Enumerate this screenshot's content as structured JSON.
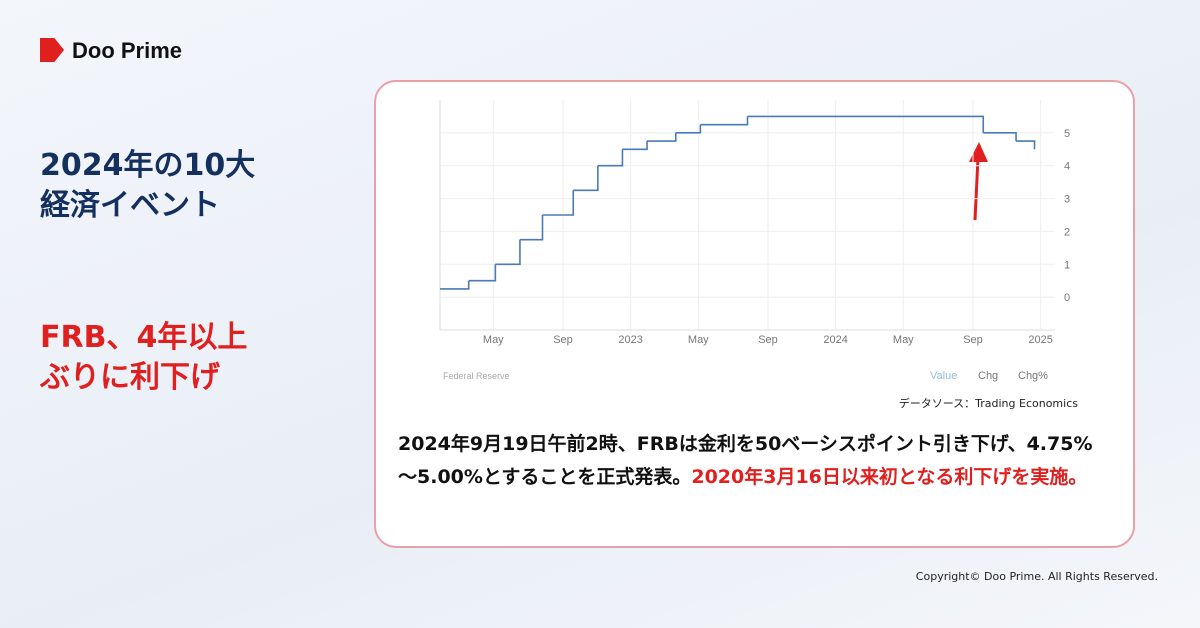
{
  "brand": "Doo Prime",
  "headline": [
    "2024年の10大",
    "経済イベント"
  ],
  "subheadline": [
    "FRB、4年以上",
    "ぶりに利下げ"
  ],
  "chart_data": {
    "type": "line",
    "step": true,
    "color": "#4a7ab8",
    "x": [
      2022.07,
      2022.21,
      2022.34,
      2022.46,
      2022.57,
      2022.72,
      2022.84,
      2022.96,
      2023.08,
      2023.22,
      2023.34,
      2023.57,
      2024.72,
      2024.88,
      2024.97
    ],
    "values": [
      0.25,
      0.5,
      1.0,
      1.75,
      2.5,
      3.25,
      4.0,
      4.5,
      4.75,
      5.0,
      5.25,
      5.5,
      5.0,
      4.75,
      4.5
    ],
    "xlim": [
      2022.07,
      2025.07
    ],
    "xticks": [
      {
        "value": 2022.33,
        "label": "May"
      },
      {
        "value": 2022.67,
        "label": "Sep"
      },
      2023,
      {
        "value": 2023.33,
        "label": "May"
      },
      {
        "value": 2023.67,
        "label": "Sep"
      },
      2024,
      {
        "value": 2024.33,
        "label": "May"
      },
      {
        "value": 2024.67,
        "label": "Sep"
      },
      2025
    ],
    "ylim": [
      -1,
      6
    ],
    "yticks": [
      0,
      1,
      2,
      3,
      4,
      5
    ],
    "grid": true,
    "source": "Federal Reserve",
    "tabs": [
      "Value",
      "Chg",
      "Chg%"
    ]
  },
  "data_source": "データソース：Trading Economics",
  "body": {
    "text": "2024年9月19日午前2時、FRBは金利を50ベーシスポイント引き下げ、4.75%～5.00%とすることを正式発表。",
    "highlight": "2020年3月16日以来初となる利下げを実施。"
  },
  "copyright": "Copyright© Doo Prime. All Rights Reserved."
}
